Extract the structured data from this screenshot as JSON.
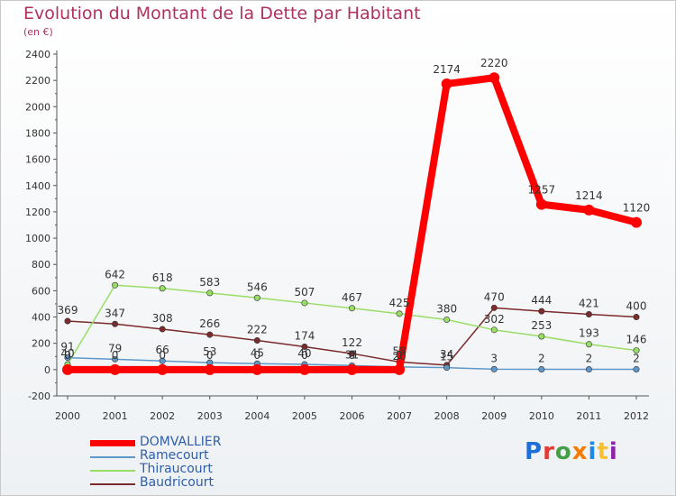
{
  "title": "Evolution du Montant de la Dette par Habitant",
  "subtitle": "(en €)",
  "logo": {
    "text": "Proxiti",
    "letter_colors": [
      "#1e6fd8",
      "#e53935",
      "#43a047",
      "#f57c00",
      "#1e88e5",
      "#fbc02d",
      "#8e24aa"
    ]
  },
  "chart_data": {
    "type": "line",
    "title": "Evolution du Montant de la Dette par Habitant",
    "subtitle": "(en €)",
    "xlabel": "",
    "ylabel": "",
    "x": [
      "2000",
      "2001",
      "2002",
      "2003",
      "2004",
      "2005",
      "2006",
      "2007",
      "2008",
      "2009",
      "2010",
      "2011",
      "2012"
    ],
    "ylim": [
      -200,
      2400
    ],
    "yticks": [
      -200,
      0,
      200,
      400,
      600,
      800,
      1000,
      1200,
      1400,
      1600,
      1800,
      2000,
      2200,
      2400
    ],
    "grid": false,
    "legend_position": "bottom-left",
    "series": [
      {
        "name": "DOMVALLIER",
        "color": "#ff0000",
        "values": [
          0,
          0,
          0,
          0,
          0,
          0,
          0,
          0,
          2174,
          2220,
          1257,
          1214,
          1120
        ],
        "labels": [
          "0",
          "0",
          "0",
          "0",
          "0",
          "0",
          "0",
          "0",
          "2174",
          "2220",
          "1257",
          "1214",
          "1120"
        ]
      },
      {
        "name": "Ramecourt",
        "color": "#5e97c9",
        "values": [
          91,
          79,
          66,
          53,
          45,
          40,
          31,
          20,
          15,
          3,
          2,
          2,
          2
        ],
        "labels": [
          "91",
          "79",
          "66",
          "53",
          "45",
          "40",
          "31",
          "20",
          "15",
          "3",
          "2",
          "2",
          "2"
        ]
      },
      {
        "name": "Thiraucourt",
        "color": "#99dd66",
        "values": [
          40,
          642,
          618,
          583,
          546,
          507,
          467,
          425,
          380,
          302,
          253,
          193,
          146
        ],
        "labels": [
          "40",
          "642",
          "618",
          "583",
          "546",
          "507",
          "467",
          "425",
          "380",
          "302",
          "253",
          "193",
          "146"
        ]
      },
      {
        "name": "Baudricourt",
        "color": "#7b2b2b",
        "values": [
          369,
          347,
          308,
          266,
          222,
          174,
          122,
          58,
          34,
          470,
          444,
          421,
          400
        ],
        "labels": [
          "369",
          "347",
          "308",
          "266",
          "222",
          "174",
          "122",
          "58",
          "34",
          "470",
          "444",
          "421",
          "400"
        ]
      }
    ]
  }
}
